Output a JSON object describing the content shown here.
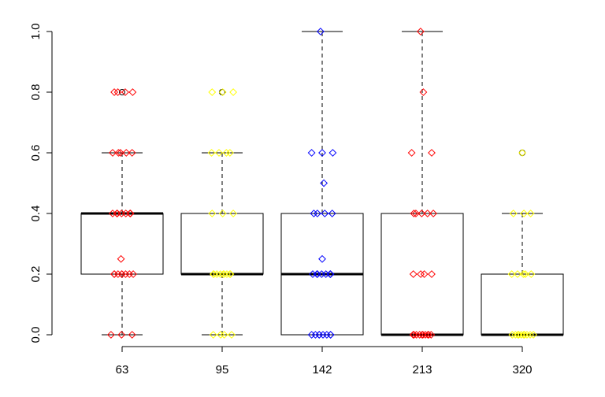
{
  "chart_data": {
    "type": "boxplot",
    "title": "",
    "xlabel": "",
    "ylabel": "",
    "categories": [
      "63",
      "95",
      "142",
      "213",
      "320"
    ],
    "ylim": [
      0,
      1
    ],
    "yticks": [
      "0.0",
      "0.2",
      "0.4",
      "0.6",
      "0.8",
      "1.0"
    ],
    "grid": false,
    "boxes": [
      {
        "category": "63",
        "q1": 0.2,
        "median": 0.4,
        "q3": 0.4,
        "whisker_low": 0.0,
        "whisker_high": 0.6,
        "outliers": [
          0.8
        ],
        "point_color": "#ff0000",
        "points": [
          0,
          0,
          0,
          0.2,
          0.2,
          0.2,
          0.2,
          0.2,
          0.2,
          0.2,
          0.2,
          0.25,
          0.4,
          0.4,
          0.4,
          0.4,
          0.4,
          0.4,
          0.4,
          0.6,
          0.6,
          0.6,
          0.6,
          0.6,
          0.8,
          0.8,
          0.8,
          0.8
        ]
      },
      {
        "category": "95",
        "q1": 0.2,
        "median": 0.2,
        "q3": 0.4,
        "whisker_low": 0.0,
        "whisker_high": 0.6,
        "outliers": [
          0.8
        ],
        "point_color": "#ffff00",
        "points": [
          0,
          0,
          0,
          0,
          0.2,
          0.2,
          0.2,
          0.2,
          0.2,
          0.2,
          0.2,
          0.2,
          0.2,
          0.4,
          0.4,
          0.4,
          0.6,
          0.6,
          0.6,
          0.6,
          0.8,
          0.8,
          0.8
        ]
      },
      {
        "category": "142",
        "q1": 0.0,
        "median": 0.2,
        "q3": 0.4,
        "whisker_low": 0.0,
        "whisker_high": 1.0,
        "outliers": [],
        "point_color": "#0000ff",
        "points": [
          0,
          0,
          0,
          0,
          0,
          0,
          0,
          0,
          0.2,
          0.2,
          0.2,
          0.2,
          0.2,
          0.2,
          0.2,
          0.25,
          0.4,
          0.4,
          0.4,
          0.4,
          0.5,
          0.6,
          0.6,
          0.6,
          1.0
        ]
      },
      {
        "category": "213",
        "q1": 0.0,
        "median": 0.0,
        "q3": 0.4,
        "whisker_low": 0.0,
        "whisker_high": 1.0,
        "outliers": [],
        "point_color": "#ff0000",
        "points": [
          0,
          0,
          0,
          0,
          0,
          0,
          0,
          0,
          0,
          0,
          0.2,
          0.2,
          0.2,
          0.2,
          0.4,
          0.4,
          0.4,
          0.4,
          0.4,
          0.6,
          0.6,
          0.8,
          1.0
        ]
      },
      {
        "category": "320",
        "q1": 0.0,
        "median": 0.0,
        "q3": 0.2,
        "whisker_low": 0.0,
        "whisker_high": 0.4,
        "outliers": [
          0.6
        ],
        "point_color": "#ffff00",
        "points": [
          0,
          0,
          0,
          0,
          0,
          0,
          0,
          0,
          0,
          0,
          0.2,
          0.2,
          0.2,
          0.2,
          0.2,
          0.4,
          0.4,
          0.4,
          0.6
        ]
      }
    ],
    "colors": {
      "box": "#000000",
      "outlier": "#000000"
    }
  }
}
